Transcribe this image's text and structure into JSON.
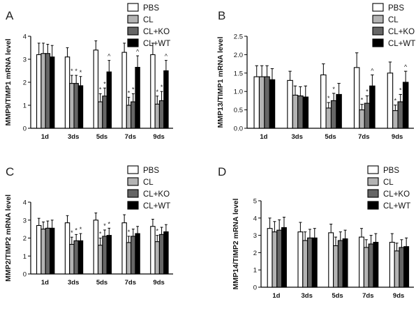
{
  "chart_data": [
    {
      "panel": "A",
      "type": "bar",
      "ylabel": "MMP9/TIMP1 mRNA level",
      "categories": [
        "1d",
        "3ds",
        "5ds",
        "7ds",
        "9ds"
      ],
      "ylim": [
        0,
        4
      ],
      "yticks": [
        "0",
        "1",
        "2",
        "3",
        "4"
      ],
      "legend": [
        "PBS",
        "CL",
        "CL+KO",
        "CL+WT"
      ],
      "series": [
        {
          "name": "PBS",
          "color": "#ffffff",
          "values": [
            3.2,
            3.1,
            3.4,
            3.3,
            3.2
          ],
          "errors": [
            0.5,
            0.4,
            0.4,
            0.4,
            0.5
          ]
        },
        {
          "name": "CL",
          "color": "#b3b3b3",
          "values": [
            3.25,
            1.95,
            1.15,
            1.0,
            1.05
          ],
          "errors": [
            0.45,
            0.35,
            0.35,
            0.35,
            0.35
          ]
        },
        {
          "name": "CL+KO",
          "color": "#666666",
          "values": [
            3.25,
            1.95,
            1.4,
            1.15,
            1.2
          ],
          "errors": [
            0.4,
            0.35,
            0.35,
            0.35,
            0.4
          ]
        },
        {
          "name": "CL+WT",
          "color": "#000000",
          "values": [
            3.1,
            1.85,
            2.45,
            2.65,
            2.5
          ],
          "errors": [
            0.5,
            0.4,
            0.5,
            0.5,
            0.45
          ]
        }
      ],
      "annotations": [
        {
          "category": "3ds",
          "series": "CL",
          "text": "*"
        },
        {
          "category": "3ds",
          "series": "CL+KO",
          "text": "*"
        },
        {
          "category": "3ds",
          "series": "CL+WT",
          "text": "*"
        },
        {
          "category": "5ds",
          "series": "CL",
          "text": "*"
        },
        {
          "category": "5ds",
          "series": "CL+KO",
          "text": "*"
        },
        {
          "category": "5ds",
          "series": "CL+WT",
          "text": "^"
        },
        {
          "category": "7ds",
          "series": "CL",
          "text": "*"
        },
        {
          "category": "7ds",
          "series": "CL+KO",
          "text": "*"
        },
        {
          "category": "7ds",
          "series": "CL+WT",
          "text": "^"
        },
        {
          "category": "9ds",
          "series": "CL",
          "text": "*"
        },
        {
          "category": "9ds",
          "series": "CL+KO",
          "text": "*"
        },
        {
          "category": "9ds",
          "series": "CL+WT",
          "text": "^"
        }
      ]
    },
    {
      "panel": "B",
      "type": "bar",
      "ylabel": "MMP13/TIMP1 mRNA level",
      "categories": [
        "1d",
        "3ds",
        "5ds",
        "7ds",
        "9ds"
      ],
      "ylim": [
        0,
        2.5
      ],
      "yticks": [
        "0.0",
        "0.5",
        "1.0",
        "1.5",
        "2.0",
        "2.5"
      ],
      "legend": [
        "PBS",
        "CL",
        "CL+KO",
        "CL+WT"
      ],
      "series": [
        {
          "name": "PBS",
          "color": "#ffffff",
          "values": [
            1.4,
            1.3,
            1.45,
            1.65,
            1.5
          ],
          "errors": [
            0.3,
            0.25,
            0.3,
            0.4,
            0.3
          ]
        },
        {
          "name": "CL",
          "color": "#b3b3b3",
          "values": [
            1.4,
            0.9,
            0.55,
            0.5,
            0.48
          ],
          "errors": [
            0.3,
            0.25,
            0.15,
            0.15,
            0.15
          ]
        },
        {
          "name": "CL+KO",
          "color": "#666666",
          "values": [
            1.4,
            0.88,
            0.75,
            0.68,
            0.72
          ],
          "errors": [
            0.3,
            0.25,
            0.2,
            0.2,
            0.2
          ]
        },
        {
          "name": "CL+WT",
          "color": "#000000",
          "values": [
            1.32,
            0.85,
            0.92,
            1.15,
            1.25
          ],
          "errors": [
            0.3,
            0.3,
            0.3,
            0.3,
            0.3
          ]
        }
      ],
      "annotations": [
        {
          "category": "5ds",
          "series": "CL",
          "text": "*"
        },
        {
          "category": "5ds",
          "series": "CL+KO",
          "text": "*"
        },
        {
          "category": "7ds",
          "series": "CL",
          "text": "*"
        },
        {
          "category": "7ds",
          "series": "CL+KO",
          "text": "*"
        },
        {
          "category": "7ds",
          "series": "CL+WT",
          "text": "^"
        },
        {
          "category": "9ds",
          "series": "CL",
          "text": "*"
        },
        {
          "category": "9ds",
          "series": "CL+KO",
          "text": "*"
        },
        {
          "category": "9ds",
          "series": "CL+WT",
          "text": "^"
        }
      ]
    },
    {
      "panel": "C",
      "type": "bar",
      "ylabel": "MMP2/TIMP2 mRNA level",
      "categories": [
        "1d",
        "3ds",
        "5ds",
        "7ds",
        "9ds"
      ],
      "ylim": [
        0,
        4
      ],
      "yticks": [
        "0",
        "1",
        "2",
        "3",
        "4"
      ],
      "legend": [
        "PBS",
        "CL",
        "CL+KO",
        "CL+WT"
      ],
      "series": [
        {
          "name": "PBS",
          "color": "#ffffff",
          "values": [
            2.7,
            2.85,
            3.0,
            2.85,
            2.65
          ],
          "errors": [
            0.4,
            0.4,
            0.4,
            0.45,
            0.4
          ]
        },
        {
          "name": "CL",
          "color": "#b3b3b3",
          "values": [
            2.5,
            1.65,
            1.6,
            1.75,
            1.8
          ],
          "errors": [
            0.4,
            0.4,
            0.4,
            0.35,
            0.35
          ]
        },
        {
          "name": "CL+KO",
          "color": "#666666",
          "values": [
            2.55,
            1.85,
            2.1,
            2.1,
            2.2
          ],
          "errors": [
            0.4,
            0.35,
            0.35,
            0.4,
            0.4
          ]
        },
        {
          "name": "CL+WT",
          "color": "#000000",
          "values": [
            2.55,
            1.85,
            2.15,
            2.25,
            2.35
          ],
          "errors": [
            0.45,
            0.4,
            0.4,
            0.4,
            0.4
          ]
        }
      ],
      "annotations": [
        {
          "category": "3ds",
          "series": "CL",
          "text": "*"
        },
        {
          "category": "3ds",
          "series": "CL+KO",
          "text": "*"
        },
        {
          "category": "3ds",
          "series": "CL+WT",
          "text": "*"
        },
        {
          "category": "5ds",
          "series": "CL",
          "text": "*"
        },
        {
          "category": "5ds",
          "series": "CL+KO",
          "text": "*"
        },
        {
          "category": "5ds",
          "series": "CL+WT",
          "text": "*"
        },
        {
          "category": "7ds",
          "series": "CL",
          "text": "*"
        },
        {
          "category": "9ds",
          "series": "CL",
          "text": "*"
        }
      ]
    },
    {
      "panel": "D",
      "type": "bar",
      "ylabel": "MMP14/TIMP2 mRNA level",
      "categories": [
        "1d",
        "3ds",
        "5ds",
        "7ds",
        "9ds"
      ],
      "ylim": [
        0,
        5
      ],
      "yticks": [
        "0",
        "1",
        "2",
        "3",
        "4",
        "5"
      ],
      "legend": [
        "PBS",
        "CL",
        "CL+KO",
        "CL+WT"
      ],
      "series": [
        {
          "name": "PBS",
          "color": "#ffffff",
          "values": [
            3.4,
            3.2,
            3.15,
            2.9,
            2.6
          ],
          "errors": [
            0.6,
            0.55,
            0.5,
            0.5,
            0.5
          ]
        },
        {
          "name": "CL",
          "color": "#b3b3b3",
          "values": [
            3.2,
            2.7,
            2.4,
            2.3,
            2.1
          ],
          "errors": [
            0.6,
            0.5,
            0.5,
            0.45,
            0.45
          ]
        },
        {
          "name": "CL+KO",
          "color": "#666666",
          "values": [
            3.3,
            2.85,
            2.7,
            2.5,
            2.3
          ],
          "errors": [
            0.6,
            0.5,
            0.5,
            0.5,
            0.45
          ]
        },
        {
          "name": "CL+WT",
          "color": "#000000",
          "values": [
            3.45,
            2.85,
            2.8,
            2.6,
            2.35
          ],
          "errors": [
            0.6,
            0.55,
            0.5,
            0.5,
            0.5
          ]
        }
      ],
      "annotations": []
    }
  ]
}
